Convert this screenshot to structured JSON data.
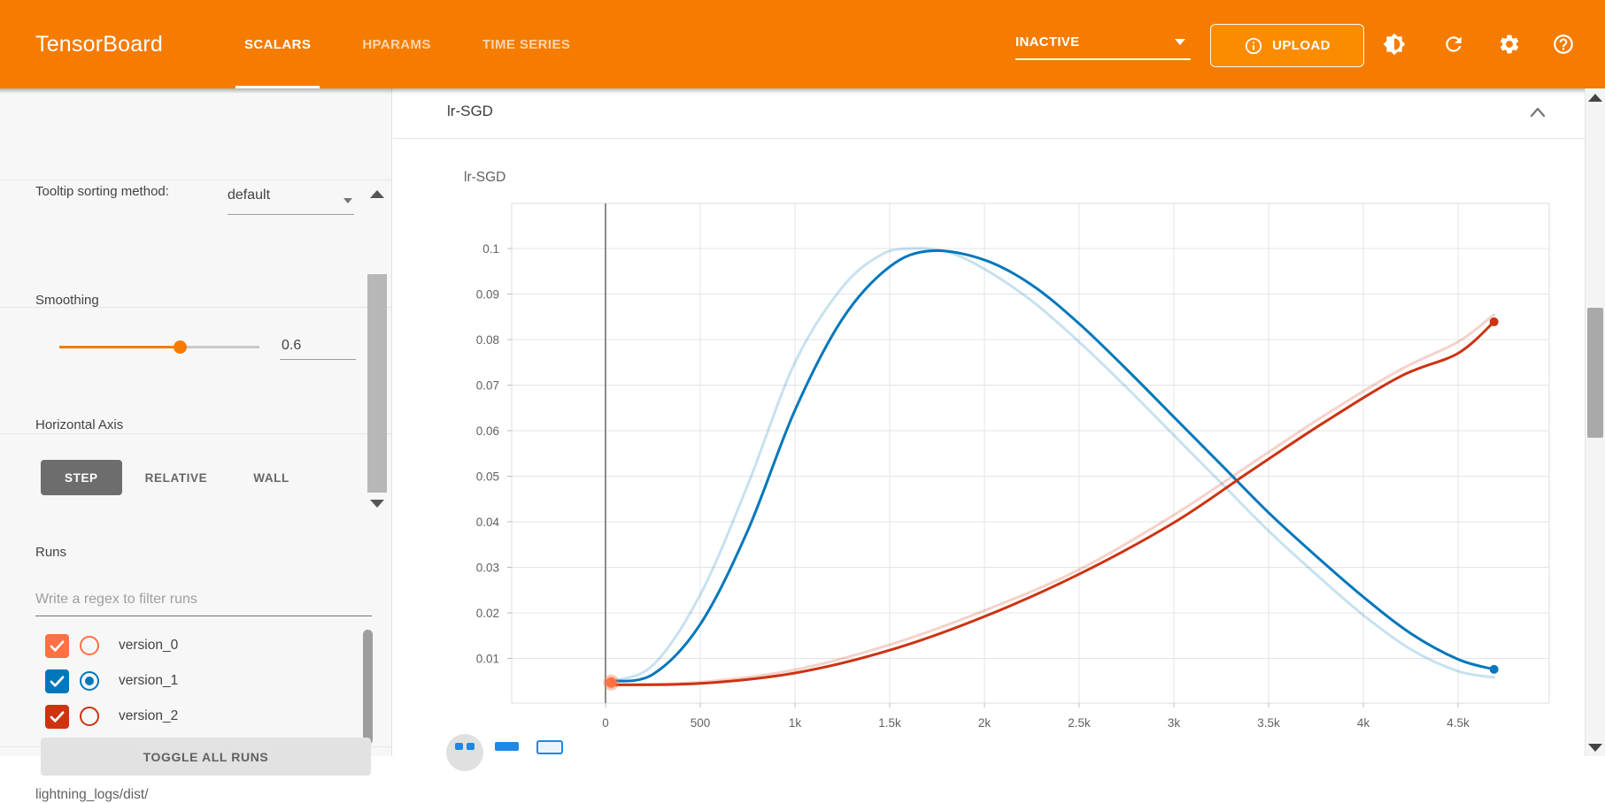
{
  "app": {
    "title": "TensorBoard"
  },
  "header": {
    "tabs": [
      {
        "label": "SCALARS",
        "active": true
      },
      {
        "label": "HPARAMS",
        "active": false
      },
      {
        "label": "TIME SERIES",
        "active": false
      }
    ],
    "status_dropdown": "INACTIVE",
    "upload_label": "UPLOAD",
    "icons": {
      "upload_info": "info-icon",
      "theme": "brightness-icon",
      "refresh": "refresh-icon",
      "settings": "gear-icon",
      "help": "help-icon"
    },
    "accent_color": "#f57c00"
  },
  "sidebar": {
    "tooltip_sorting": {
      "label": "Tooltip sorting method:",
      "value": "default"
    },
    "smoothing": {
      "label": "Smoothing",
      "value": "0.6"
    },
    "horizontal_axis": {
      "label": "Horizontal Axis",
      "options": [
        {
          "label": "STEP",
          "active": true
        },
        {
          "label": "RELATIVE",
          "active": false
        },
        {
          "label": "WALL",
          "active": false
        }
      ]
    },
    "runs": {
      "title": "Runs",
      "filter_placeholder": "Write a regex to filter runs",
      "items": [
        {
          "label": "version_0",
          "color": "#ff7043",
          "checked": true,
          "radio_selected": false
        },
        {
          "label": "version_1",
          "color": "#0077bb",
          "checked": true,
          "radio_selected": true
        },
        {
          "label": "version_2",
          "color": "#cc3311",
          "checked": true,
          "radio_selected": false
        }
      ],
      "toggle_all_label": "TOGGLE ALL RUNS",
      "log_dir": "lightning_logs/dist/"
    }
  },
  "main": {
    "group_title": "lr-SGD",
    "card_title": "lr-SGD"
  },
  "chart_data": {
    "type": "line",
    "title": "lr-SGD",
    "xlabel": "",
    "ylabel": "",
    "xlim": [
      -500,
      5000
    ],
    "ylim": [
      0,
      0.11
    ],
    "grid": true,
    "legend": "none",
    "x_ticks": [
      [
        0,
        "0"
      ],
      [
        500,
        "500"
      ],
      [
        1000,
        "1k"
      ],
      [
        1500,
        "1.5k"
      ],
      [
        2000,
        "2k"
      ],
      [
        2500,
        "2.5k"
      ],
      [
        3000,
        "3k"
      ],
      [
        3500,
        "3.5k"
      ],
      [
        4000,
        "4k"
      ],
      [
        4500,
        "4.5k"
      ]
    ],
    "y_ticks": [
      [
        0.01,
        "0.01"
      ],
      [
        0.02,
        "0.02"
      ],
      [
        0.03,
        "0.03"
      ],
      [
        0.04,
        "0.04"
      ],
      [
        0.05,
        "0.05"
      ],
      [
        0.06,
        "0.06"
      ],
      [
        0.07,
        "0.07"
      ],
      [
        0.08,
        "0.08"
      ],
      [
        0.09,
        "0.09"
      ],
      [
        0.1,
        "0.1"
      ]
    ],
    "series": [
      {
        "name": "version_0",
        "color": "#ff7043",
        "style": "points",
        "points": [
          [
            30,
            0.0047
          ]
        ]
      },
      {
        "name": "version_1 (original)",
        "color": "#0077bb",
        "style": "original",
        "points": [
          [
            30,
            0.005
          ],
          [
            250,
            0.0085
          ],
          [
            500,
            0.024
          ],
          [
            750,
            0.048
          ],
          [
            1000,
            0.075
          ],
          [
            1250,
            0.0915
          ],
          [
            1450,
            0.0985
          ],
          [
            1600,
            0.1
          ],
          [
            1800,
            0.0993
          ],
          [
            2000,
            0.0955
          ],
          [
            2250,
            0.0885
          ],
          [
            2500,
            0.0795
          ],
          [
            2750,
            0.0695
          ],
          [
            3000,
            0.059
          ],
          [
            3250,
            0.0485
          ],
          [
            3500,
            0.038
          ],
          [
            3750,
            0.0285
          ],
          [
            4000,
            0.0195
          ],
          [
            4250,
            0.012
          ],
          [
            4500,
            0.0072
          ],
          [
            4690,
            0.0058
          ]
        ]
      },
      {
        "name": "version_2 (original)",
        "color": "#cc3311",
        "style": "original",
        "points": [
          [
            30,
            0.0042
          ],
          [
            500,
            0.0048
          ],
          [
            1000,
            0.0075
          ],
          [
            1500,
            0.013
          ],
          [
            2000,
            0.0205
          ],
          [
            2500,
            0.0295
          ],
          [
            3000,
            0.0415
          ],
          [
            3400,
            0.0525
          ],
          [
            3800,
            0.0635
          ],
          [
            4200,
            0.0735
          ],
          [
            4500,
            0.0795
          ],
          [
            4690,
            0.0855
          ]
        ]
      },
      {
        "name": "version_1 (smoothed)",
        "color": "#0077bb",
        "style": "smoothed",
        "end_dot": true,
        "points": [
          [
            30,
            0.005
          ],
          [
            250,
            0.0065
          ],
          [
            500,
            0.0175
          ],
          [
            750,
            0.038
          ],
          [
            1000,
            0.0645
          ],
          [
            1250,
            0.0845
          ],
          [
            1500,
            0.096
          ],
          [
            1720,
            0.0995
          ],
          [
            2000,
            0.0975
          ],
          [
            2250,
            0.092
          ],
          [
            2500,
            0.0835
          ],
          [
            2750,
            0.0735
          ],
          [
            3000,
            0.063
          ],
          [
            3250,
            0.0525
          ],
          [
            3500,
            0.042
          ],
          [
            3750,
            0.0325
          ],
          [
            4000,
            0.0235
          ],
          [
            4250,
            0.0155
          ],
          [
            4500,
            0.0098
          ],
          [
            4690,
            0.0076
          ]
        ]
      },
      {
        "name": "version_2 (smoothed)",
        "color": "#cc3311",
        "style": "smoothed",
        "end_dot": true,
        "points": [
          [
            30,
            0.0042
          ],
          [
            500,
            0.0045
          ],
          [
            1000,
            0.0068
          ],
          [
            1500,
            0.0118
          ],
          [
            2000,
            0.0192
          ],
          [
            2500,
            0.0285
          ],
          [
            3000,
            0.0398
          ],
          [
            3400,
            0.051
          ],
          [
            3800,
            0.062
          ],
          [
            4200,
            0.072
          ],
          [
            4500,
            0.077
          ],
          [
            4690,
            0.0839
          ]
        ]
      }
    ]
  }
}
